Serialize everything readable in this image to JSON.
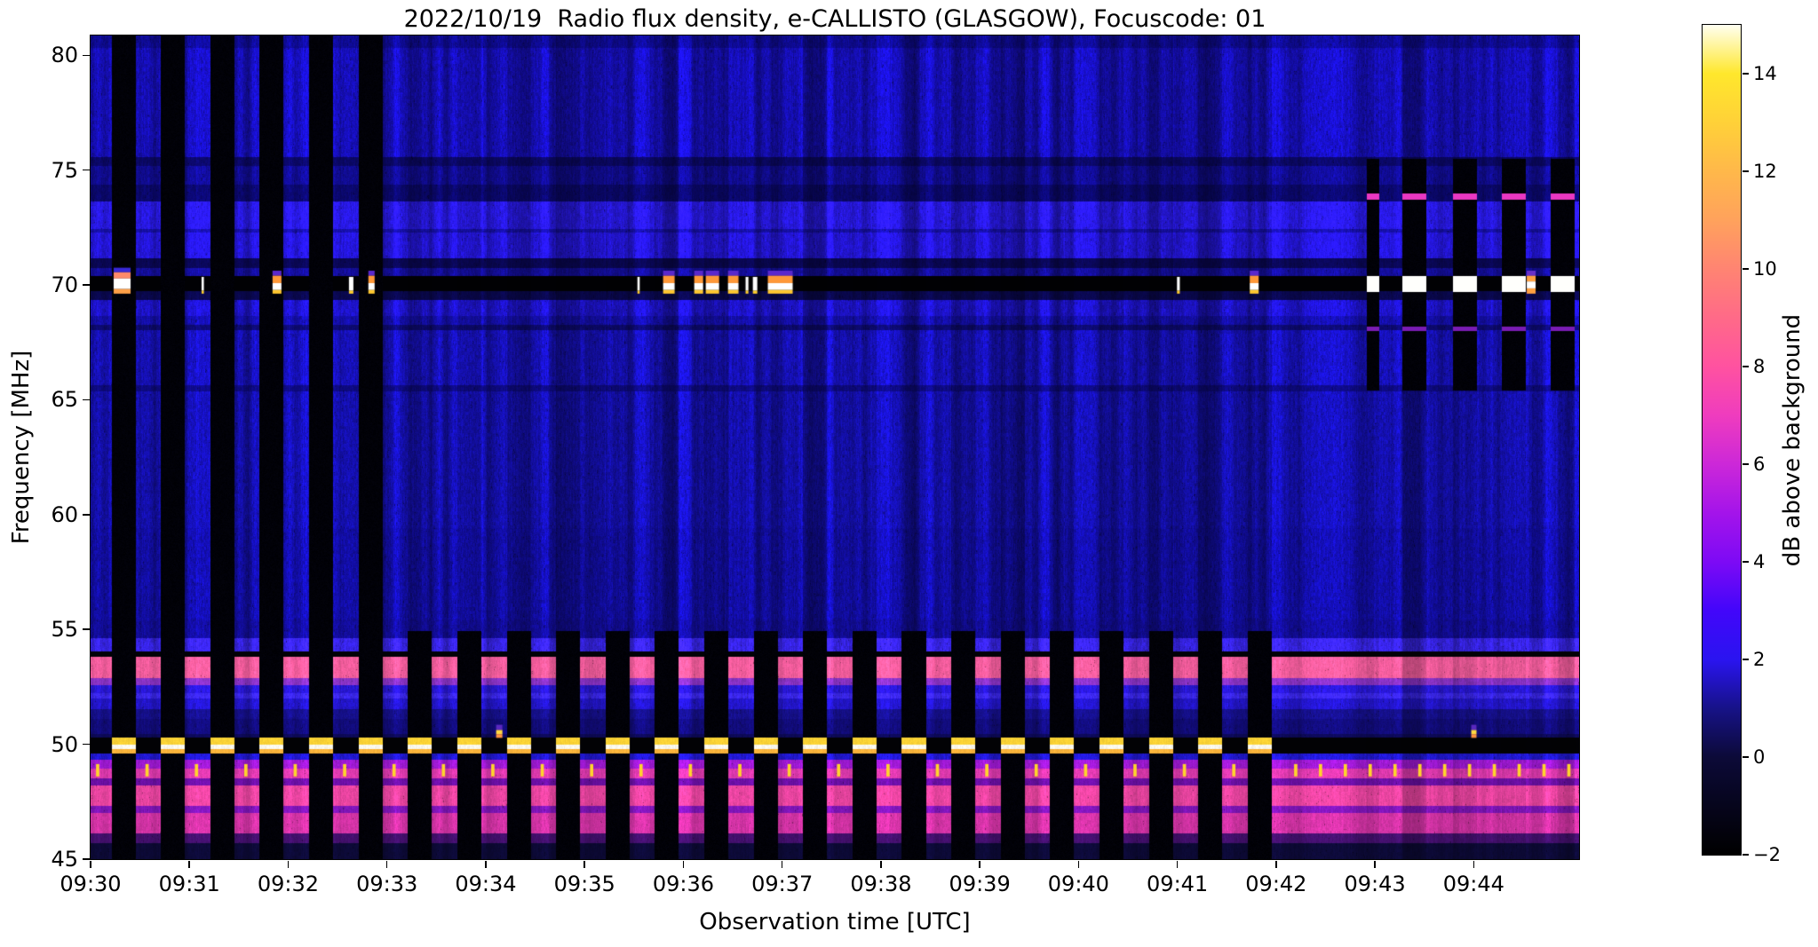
{
  "title": "2022/10/19  Radio flux density, e-CALLISTO (GLASGOW), Focuscode: 01",
  "axes": {
    "x_label": "Observation time [UTC]",
    "y_label": "Frequency [MHz]",
    "x_ticks": [
      "09:30",
      "09:31",
      "09:32",
      "09:33",
      "09:34",
      "09:35",
      "09:36",
      "09:37",
      "09:38",
      "09:39",
      "09:40",
      "09:41",
      "09:42",
      "09:43",
      "09:44"
    ],
    "y_ticks": [
      "80",
      "75",
      "70",
      "65",
      "60",
      "55",
      "50",
      "45"
    ]
  },
  "colorbar": {
    "label": "dB above background",
    "ticks": [
      "14",
      "12",
      "10",
      "8",
      "6",
      "4",
      "2",
      "0",
      "−2"
    ],
    "tick_values": [
      14,
      12,
      10,
      8,
      6,
      4,
      2,
      0,
      -2
    ],
    "range": [
      -2,
      15
    ]
  },
  "chart_data": {
    "type": "heatmap",
    "title": "2022/10/19  Radio flux density, e-CALLISTO (GLASGOW), Focuscode: 01",
    "xlabel": "Observation time [UTC]",
    "ylabel": "Frequency [MHz]",
    "x_start_utc": "09:30:00",
    "x_end_utc": "09:45:04",
    "duration_s": 904,
    "x_tick_interval_s": 60,
    "ylim_mhz": [
      45,
      80.86
    ],
    "y_ticks_mhz": [
      80,
      75,
      70,
      65,
      60,
      55,
      50,
      45
    ],
    "colorbar_range": [
      -2,
      15
    ],
    "colormap_stops": [
      [
        -2,
        "#000000"
      ],
      [
        0,
        "#0c0a38"
      ],
      [
        1,
        "#171288"
      ],
      [
        2,
        "#2a14f0"
      ],
      [
        3,
        "#4206fa"
      ],
      [
        4,
        "#7d0af5"
      ],
      [
        5,
        "#a414ea"
      ],
      [
        6,
        "#cc28d8"
      ],
      [
        7,
        "#ef3cbe"
      ],
      [
        8,
        "#ff52a0"
      ],
      [
        9,
        "#ff6a88"
      ],
      [
        10,
        "#ff8472"
      ],
      [
        11,
        "#ffa25c"
      ],
      [
        12,
        "#ffb84a"
      ],
      [
        13,
        "#ffd138"
      ],
      [
        14,
        "#ffe72c"
      ],
      [
        15,
        "#fffff0"
      ]
    ],
    "frequency_bands": [
      [
        80.86,
        80.3,
        "#0f0b9a",
        0.9
      ],
      [
        80.3,
        75.55,
        "#170fc0",
        1.0
      ],
      [
        75.55,
        75.18,
        "#0b0868",
        0.8
      ],
      [
        75.18,
        74.35,
        "#110c96",
        0.9
      ],
      [
        74.35,
        73.65,
        "#0b0870",
        0.8
      ],
      [
        73.65,
        72.45,
        "#2a1aee",
        0.85
      ],
      [
        72.45,
        72.28,
        "#1710ae",
        0.8
      ],
      [
        72.28,
        71.15,
        "#2617e6",
        0.85
      ],
      [
        71.15,
        70.72,
        "#0a0756",
        0.7
      ],
      [
        70.72,
        70.38,
        "#140e9e",
        0.8
      ],
      [
        70.38,
        69.72,
        "#010104",
        0.12
      ],
      [
        69.72,
        69.35,
        "#0a0850",
        0.7
      ],
      [
        69.35,
        68.65,
        "#1f14d4",
        0.9
      ],
      [
        68.65,
        68.28,
        "#150fb0",
        0.9
      ],
      [
        68.28,
        68.02,
        "#0d0a72",
        0.8
      ],
      [
        68.02,
        65.62,
        "#1711be",
        1.0
      ],
      [
        65.62,
        65.38,
        "#0e0a84",
        0.8
      ],
      [
        65.38,
        59.4,
        "#1510b4",
        1.0
      ],
      [
        59.4,
        55.45,
        "#130eac",
        1.0
      ],
      [
        55.45,
        54.62,
        "#130da0",
        0.9
      ],
      [
        54.62,
        54.05,
        "#3a26f2",
        0.85
      ],
      [
        54.05,
        53.8,
        "#020206",
        0.15
      ],
      [
        53.8,
        52.9,
        "#f85fa0",
        0.45
      ],
      [
        52.9,
        52.58,
        "#8c34c8",
        0.5
      ],
      [
        52.58,
        52.22,
        "#2a18dc",
        0.7
      ],
      [
        52.22,
        51.98,
        "#3c28f0",
        0.7
      ],
      [
        51.98,
        51.52,
        "#2416d0",
        0.7
      ],
      [
        51.52,
        51.12,
        "#16108e",
        0.7
      ],
      [
        51.12,
        50.45,
        "#120c7e",
        0.7
      ],
      [
        50.45,
        50.28,
        "#0d0a5a",
        0.5
      ],
      [
        50.28,
        49.6,
        "#020205",
        0.15
      ],
      [
        49.6,
        49.32,
        "#2219d8",
        0.7
      ],
      [
        49.32,
        48.95,
        "#a21ad8",
        0.5
      ],
      [
        48.95,
        48.52,
        "#e03ab0",
        0.45
      ],
      [
        48.52,
        48.22,
        "#6f10aa",
        0.5
      ],
      [
        48.22,
        47.32,
        "#ee46a4",
        0.45
      ],
      [
        47.32,
        47.02,
        "#8216bc",
        0.5
      ],
      [
        47.02,
        46.12,
        "#d634a8",
        0.45
      ],
      [
        46.12,
        45.68,
        "#44106e",
        0.5
      ],
      [
        45.68,
        45.0,
        "#0d0a38",
        0.6
      ]
    ],
    "yellow_line_band": {
      "f_hi": 50.28,
      "f_lo": 49.6,
      "on_color": "#020205",
      "gap_stripes": [
        [
          50.28,
          50.0,
          "#ffd636"
        ],
        [
          50.0,
          49.8,
          "#fffdf2"
        ],
        [
          49.8,
          49.6,
          "#ffb73c"
        ]
      ]
    },
    "duty_cycle": {
      "period_s": 30,
      "gap_start_s": 12.7,
      "gap_len_s": 14.6,
      "full_height_gaps_k": [
        0,
        5
      ],
      "bottom_gaps_k": [
        6,
        23
      ],
      "bottom_gap_top_mhz": 54.95,
      "dim_above_bottom_gap": 0.8
    },
    "upper_gaps": {
      "gaps_s": [
        [
          775.2,
          782.7
        ],
        [
          796.8,
          811.3
        ],
        [
          827.5,
          842.0
        ],
        [
          857.1,
          871.7
        ],
        [
          886.8,
          901.3
        ]
      ],
      "f_hi": 75.48,
      "f_lo": 65.4,
      "white_line": [
        70.4,
        69.7,
        "#ffffff"
      ],
      "magenta_line": [
        73.97,
        73.72,
        "#ea38c2"
      ],
      "purple_line": [
        68.2,
        67.98,
        "#7a1cb4"
      ],
      "dim_outside": 0.88
    },
    "bursts_70mhz": [
      {
        "t": 14.0,
        "w": 10.3,
        "kind": "big"
      },
      {
        "t": 67.4,
        "w": 1.4,
        "kind": "thin"
      },
      {
        "t": 110.5,
        "w": 5.4,
        "kind": "med"
      },
      {
        "t": 156.9,
        "w": 2.7,
        "kind": "thin"
      },
      {
        "t": 168.7,
        "w": 3.8,
        "kind": "med"
      },
      {
        "t": 332.1,
        "w": 1.4,
        "kind": "thin"
      },
      {
        "t": 347.7,
        "w": 7.0,
        "kind": "med"
      },
      {
        "t": 366.6,
        "w": 5.4,
        "kind": "med"
      },
      {
        "t": 373.6,
        "w": 8.1,
        "kind": "med"
      },
      {
        "t": 387.1,
        "w": 6.4,
        "kind": "med"
      },
      {
        "t": 397.8,
        "w": 1.7,
        "kind": "thin"
      },
      {
        "t": 402.2,
        "w": 2.7,
        "kind": "thin"
      },
      {
        "t": 411.3,
        "w": 15.1,
        "kind": "med"
      },
      {
        "t": 659.8,
        "w": 1.7,
        "kind": "thin"
      },
      {
        "t": 704.0,
        "w": 5.4,
        "kind": "med"
      },
      {
        "t": 872.2,
        "w": 5.4,
        "kind": "orange"
      }
    ],
    "burst_layers": {
      "big": [
        [
          70.75,
          70.55,
          "#3828d8"
        ],
        [
          70.55,
          70.28,
          "#ff8a6a"
        ],
        [
          70.28,
          69.82,
          "#ffffff"
        ],
        [
          69.82,
          69.62,
          "#ffa048"
        ]
      ],
      "med": [
        [
          70.62,
          70.4,
          "#5a28cc"
        ],
        [
          70.4,
          70.08,
          "#ff9838"
        ],
        [
          70.08,
          69.78,
          "#ffffff"
        ],
        [
          69.78,
          69.62,
          "#ffc830"
        ]
      ],
      "thin": [
        [
          70.35,
          69.75,
          "#ffffff"
        ],
        [
          69.75,
          69.62,
          "#ffd02c"
        ]
      ],
      "orange": [
        [
          70.62,
          70.4,
          "#6a30c8"
        ],
        [
          70.4,
          70.15,
          "#ffa040"
        ],
        [
          70.15,
          69.85,
          "#ffffff"
        ],
        [
          69.85,
          69.62,
          "#ffa040"
        ]
      ]
    },
    "yellow_dashes_49mhz": {
      "f_hi": 49.14,
      "f_lo": 48.6,
      "color": "#ffd52c",
      "width_s": 2.0,
      "left_first_t": 4.3,
      "left_period_s": 30,
      "left_last_k": 23,
      "right_first_t": 731.9,
      "right_period_s": 15.08,
      "right_end_t": 903
    },
    "orange_blobs_50mhz": {
      "blobs": [
        {
          "t": 246.3,
          "w": 3.8
        },
        {
          "t": 838.5,
          "w": 3.2
        }
      ],
      "layers": [
        [
          50.85,
          50.62,
          "#5a28c0"
        ],
        [
          50.62,
          50.44,
          "#ffd840"
        ],
        [
          50.44,
          50.28,
          "#ff9440"
        ]
      ]
    },
    "noise_seed": 42
  }
}
